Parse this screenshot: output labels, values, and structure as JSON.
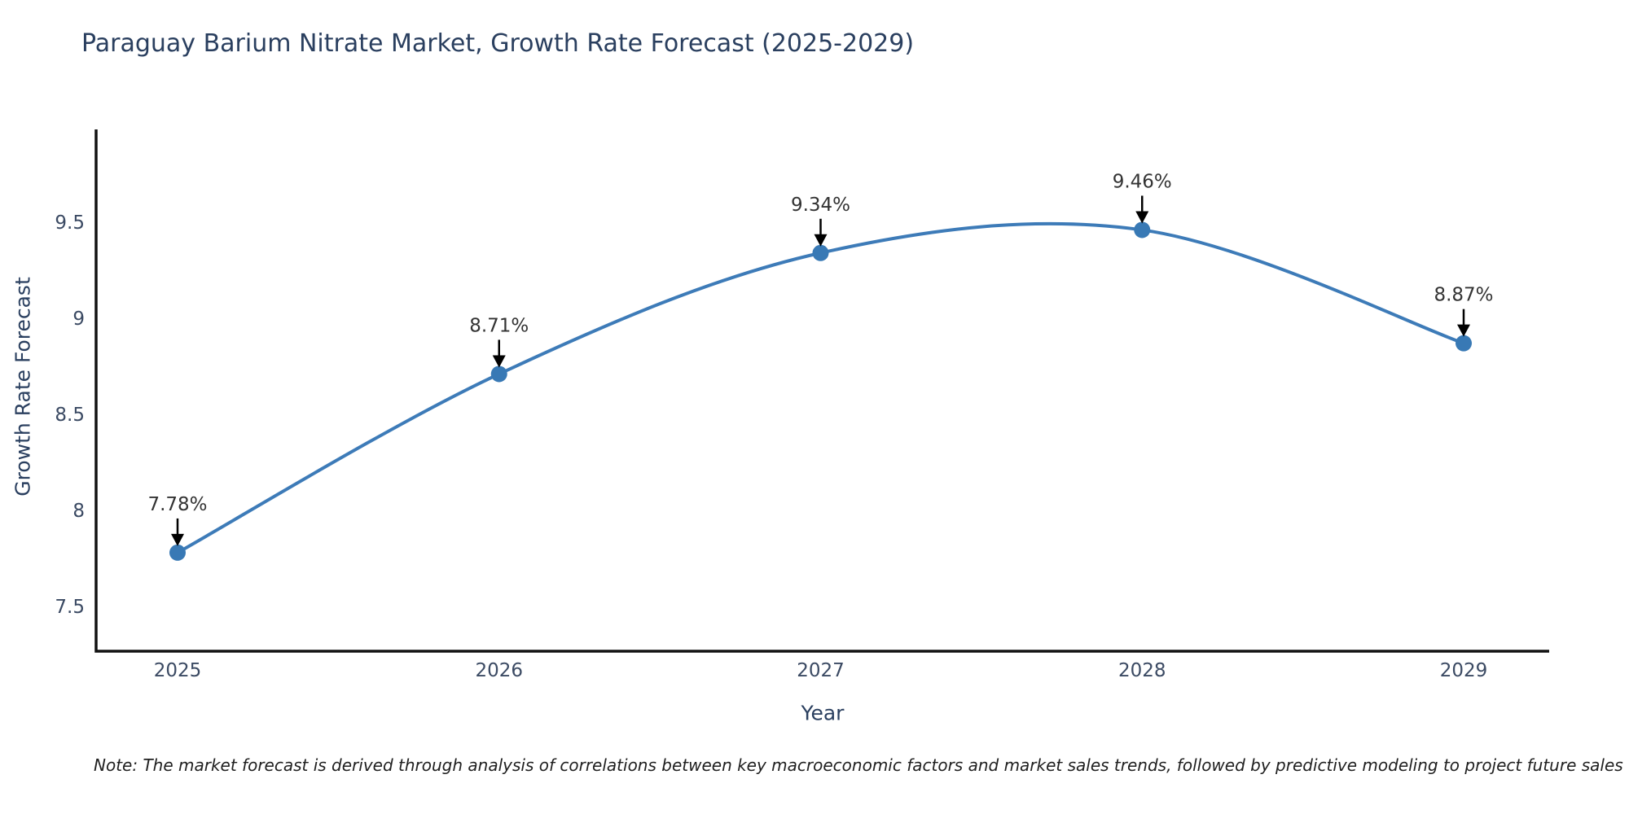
{
  "title": "Paraguay Barium Nitrate Market, Growth Rate Forecast (2025-2029)",
  "note": "Note: The market forecast is derived through analysis of correlations between key macroeconomic factors and market sales trends, followed by predictive modeling to project future sales",
  "chart_data": {
    "type": "line",
    "title": "Paraguay Barium Nitrate Market, Growth Rate Forecast (2025-2029)",
    "x": [
      2025,
      2026,
      2027,
      2028,
      2029
    ],
    "values": [
      7.78,
      8.71,
      9.34,
      9.46,
      8.87
    ],
    "point_labels": [
      "7.78%",
      "8.71%",
      "9.34%",
      "9.46%",
      "8.87%"
    ],
    "xlabel": "Year",
    "ylabel": "Growth Rate Forecast",
    "yticks": [
      7.5,
      8,
      8.5,
      9,
      9.5
    ],
    "ylim": [
      7.27,
      9.98
    ],
    "line_shape": "spline",
    "grid": false,
    "legend": "none",
    "colors": {
      "line": "#3d7bb8",
      "marker": "#3879b5",
      "axis": "#111111",
      "tick_label": "#3b4a63",
      "annotation_text": "#333333",
      "annotation_arrow": "#000000",
      "title_text": "#2a3f5f"
    }
  }
}
